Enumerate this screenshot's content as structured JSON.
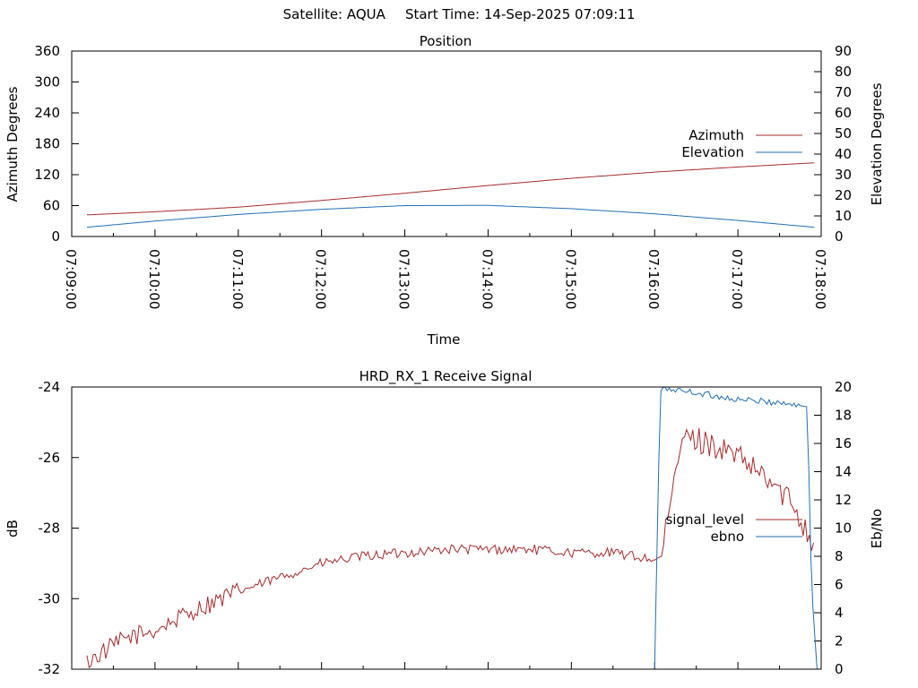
{
  "header": {
    "satellite": "Satellite: AQUA",
    "start_time": "Start Time: 14-Sep-2025 07:09:11"
  },
  "chart_data": [
    {
      "type": "line",
      "title": "Position",
      "xlabel": "Time",
      "ylabel": "Azimuth Degrees",
      "y2label": "Elevation Degrees",
      "x_ticks": [
        "07:09:00",
        "07:10:00",
        "07:11:00",
        "07:12:00",
        "07:13:00",
        "07:14:00",
        "07:15:00",
        "07:16:00",
        "07:17:00",
        "07:18:00"
      ],
      "xlim_seconds": [
        0,
        540
      ],
      "ylim": [
        0,
        360
      ],
      "y_ticks": [
        0,
        60,
        120,
        180,
        240,
        300,
        360
      ],
      "y2lim": [
        0,
        90
      ],
      "y2_ticks": [
        0,
        10,
        20,
        30,
        40,
        50,
        60,
        70,
        80,
        90
      ],
      "legend": "right",
      "series": [
        {
          "name": "Azimuth",
          "axis": "y",
          "color": "#a52a2a",
          "x": [
            "07:09:11",
            "07:10:00",
            "07:11:00",
            "07:12:00",
            "07:13:00",
            "07:14:00",
            "07:15:00",
            "07:16:00",
            "07:17:00",
            "07:17:55"
          ],
          "y": [
            42,
            48,
            57,
            70,
            84,
            99,
            113,
            125,
            135,
            143
          ]
        },
        {
          "name": "Elevation",
          "axis": "y2",
          "color": "#1f6fb5",
          "x": [
            "07:09:11",
            "07:10:00",
            "07:11:00",
            "07:12:00",
            "07:13:00",
            "07:14:00",
            "07:15:00",
            "07:16:00",
            "07:17:00",
            "07:17:55"
          ],
          "y": [
            4.5,
            7.5,
            10.7,
            13.2,
            15.0,
            15.1,
            13.5,
            11.0,
            7.8,
            4.5
          ]
        }
      ]
    },
    {
      "type": "line",
      "title": "HRD_RX_1 Receive Signal",
      "ylabel": "dB",
      "y2label": "Eb/No",
      "xlim_seconds": [
        0,
        540
      ],
      "ylim": [
        -32,
        -24
      ],
      "y_ticks": [
        -32,
        -30,
        -28,
        -26,
        -24
      ],
      "y2lim": [
        0,
        20
      ],
      "y2_ticks": [
        0,
        2,
        4,
        6,
        8,
        10,
        12,
        14,
        16,
        18,
        20
      ],
      "legend": "right",
      "series": [
        {
          "name": "signal_level",
          "axis": "y",
          "color": "#a52a2a",
          "x": [
            "07:09:11",
            "07:09:40",
            "07:10:00",
            "07:10:30",
            "07:11:00",
            "07:11:30",
            "07:12:00",
            "07:12:30",
            "07:13:00",
            "07:13:30",
            "07:14:00",
            "07:14:30",
            "07:15:00",
            "07:15:30",
            "07:16:00",
            "07:16:05",
            "07:16:20",
            "07:16:40",
            "07:17:00",
            "07:17:20",
            "07:17:40",
            "07:17:55"
          ],
          "y": [
            -31.8,
            -31.1,
            -30.9,
            -30.3,
            -29.8,
            -29.4,
            -29.0,
            -28.8,
            -28.7,
            -28.6,
            -28.6,
            -28.6,
            -28.7,
            -28.7,
            -28.9,
            -28.8,
            -25.4,
            -25.6,
            -26.0,
            -26.6,
            -27.3,
            -28.5
          ]
        },
        {
          "name": "ebno",
          "axis": "y2",
          "color": "#1f6fb5",
          "x": [
            "07:16:00",
            "07:16:04",
            "07:16:07",
            "07:16:30",
            "07:17:00",
            "07:17:30",
            "07:17:50",
            "07:17:53",
            "07:17:57"
          ],
          "y": [
            0,
            19.7,
            19.9,
            19.6,
            19.1,
            18.9,
            18.6,
            6,
            0
          ]
        }
      ]
    }
  ]
}
